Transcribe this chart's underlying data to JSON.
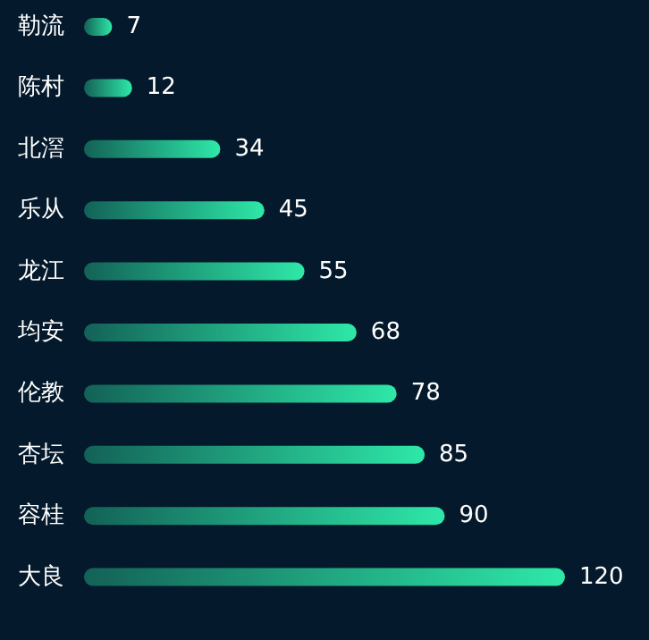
{
  "chart_data": {
    "type": "bar",
    "orientation": "horizontal",
    "categories": [
      "勒流",
      "陈村",
      "北滘",
      "乐从",
      "龙江",
      "均安",
      "伦教",
      "杏坛",
      "容桂",
      "大良"
    ],
    "values": [
      7,
      12,
      34,
      45,
      55,
      68,
      78,
      85,
      90,
      120
    ],
    "color": "#2ee8a8",
    "data_labels": true
  }
}
